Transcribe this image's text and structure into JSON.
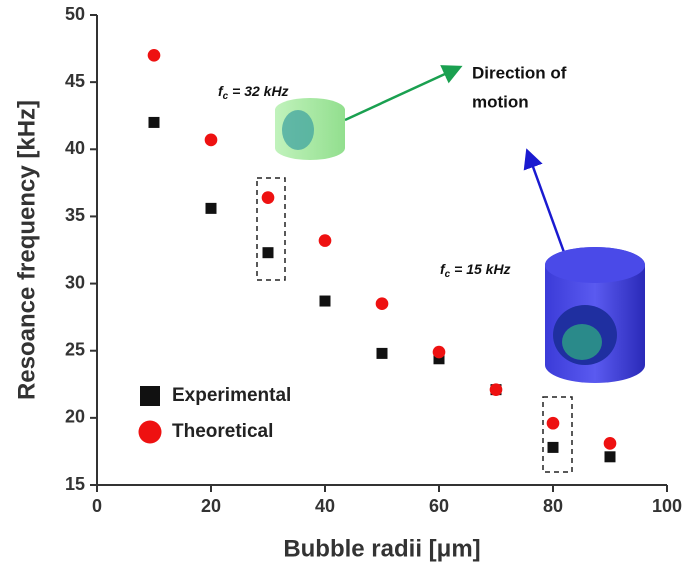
{
  "chart_data": {
    "type": "scatter",
    "x_label": "Bubble radii [μm]",
    "y_label": "Resoance frequency [kHz]",
    "x": [
      10,
      20,
      30,
      40,
      50,
      60,
      70,
      80,
      90
    ],
    "series": [
      {
        "name": "Experimental",
        "color": "#111111",
        "marker": "square",
        "values": [
          42,
          35.6,
          32.3,
          28.7,
          24.8,
          24.4,
          22.1,
          17.8,
          17.1
        ]
      },
      {
        "name": "Theoretical",
        "color": "#ee1111",
        "marker": "circle",
        "values": [
          47,
          40.7,
          36.4,
          33.2,
          28.5,
          24.9,
          22.1,
          19.6,
          18.1
        ]
      }
    ],
    "xlim": [
      0,
      100
    ],
    "xticks": [
      0,
      20,
      40,
      60,
      80,
      100
    ],
    "ylim": [
      15,
      50
    ],
    "yticks": [
      15,
      20,
      25,
      30,
      35,
      40,
      45,
      50
    ],
    "legend": "lower left",
    "annotations": [
      {
        "symbol": "f",
        "sub": "c",
        "text": " = 32 kHz"
      },
      {
        "symbol": "f",
        "sub": "c",
        "text": " = 15 kHz"
      }
    ],
    "direction_label": [
      "Direction of",
      "motion"
    ]
  }
}
